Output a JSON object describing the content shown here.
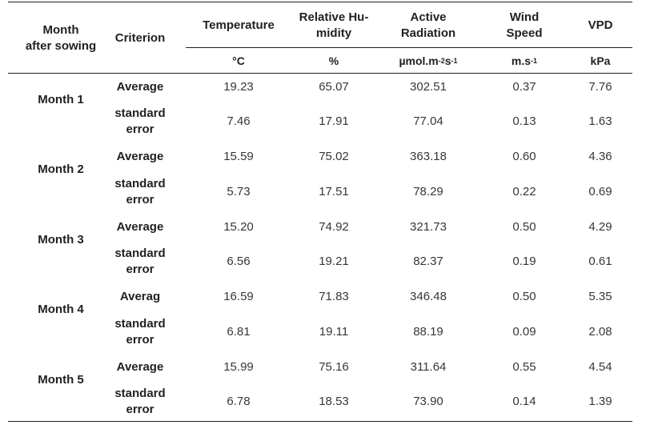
{
  "header": {
    "month": [
      "Month",
      "after sowing"
    ],
    "criterion": "Criterion",
    "temperature": "Temperature",
    "humidity": [
      "Relative Hu-",
      "midity"
    ],
    "radiation": [
      "Active",
      "Radiation"
    ],
    "wind": [
      "Wind",
      "Speed"
    ],
    "vpd": "VPD"
  },
  "units": {
    "temperature": "°C",
    "humidity": "%",
    "radiation_base": "µmol.m",
    "radiation_exp1": "-2",
    "radiation_mid": "s",
    "radiation_exp2": "-1",
    "wind_base": "m.s",
    "wind_exp": "-1",
    "vpd": "kPa"
  },
  "rows": [
    {
      "month": "Month 1",
      "average": {
        "label": "Average",
        "values": [
          "19.23",
          "65.07",
          "302.51",
          "0.37",
          "7.76"
        ]
      },
      "error": {
        "label": [
          "standard",
          "error"
        ],
        "values": [
          "7.46",
          "17.91",
          "77.04",
          "0.13",
          "1.63"
        ]
      }
    },
    {
      "month": "Month 2",
      "average": {
        "label": "Average",
        "values": [
          "15.59",
          "75.02",
          "363.18",
          "0.60",
          "4.36"
        ]
      },
      "error": {
        "label": [
          "standard",
          "error"
        ],
        "values": [
          "5.73",
          "17.51",
          "78.29",
          "0.22",
          "0.69"
        ]
      }
    },
    {
      "month": "Month 3",
      "average": {
        "label": "Average",
        "values": [
          "15.20",
          "74.92",
          "321.73",
          "0.50",
          "4.29"
        ]
      },
      "error": {
        "label": [
          "standard",
          "error"
        ],
        "values": [
          "6.56",
          "19.21",
          "82.37",
          "0.19",
          "0.61"
        ]
      }
    },
    {
      "month": "Month 4",
      "average": {
        "label": "Averag",
        "values": [
          "16.59",
          "71.83",
          "346.48",
          "0.50",
          "5.35"
        ]
      },
      "error": {
        "label": [
          "standard",
          "error"
        ],
        "values": [
          "6.81",
          "19.11",
          "88.19",
          "0.09",
          "2.08"
        ]
      }
    },
    {
      "month": "Month 5",
      "average": {
        "label": "Average",
        "values": [
          "15.99",
          "75.16",
          "311.64",
          "0.55",
          "4.54"
        ]
      },
      "error": {
        "label": [
          "standard",
          "error"
        ],
        "values": [
          "6.78",
          "18.53",
          "73.90",
          "0.14",
          "1.39"
        ]
      }
    }
  ]
}
